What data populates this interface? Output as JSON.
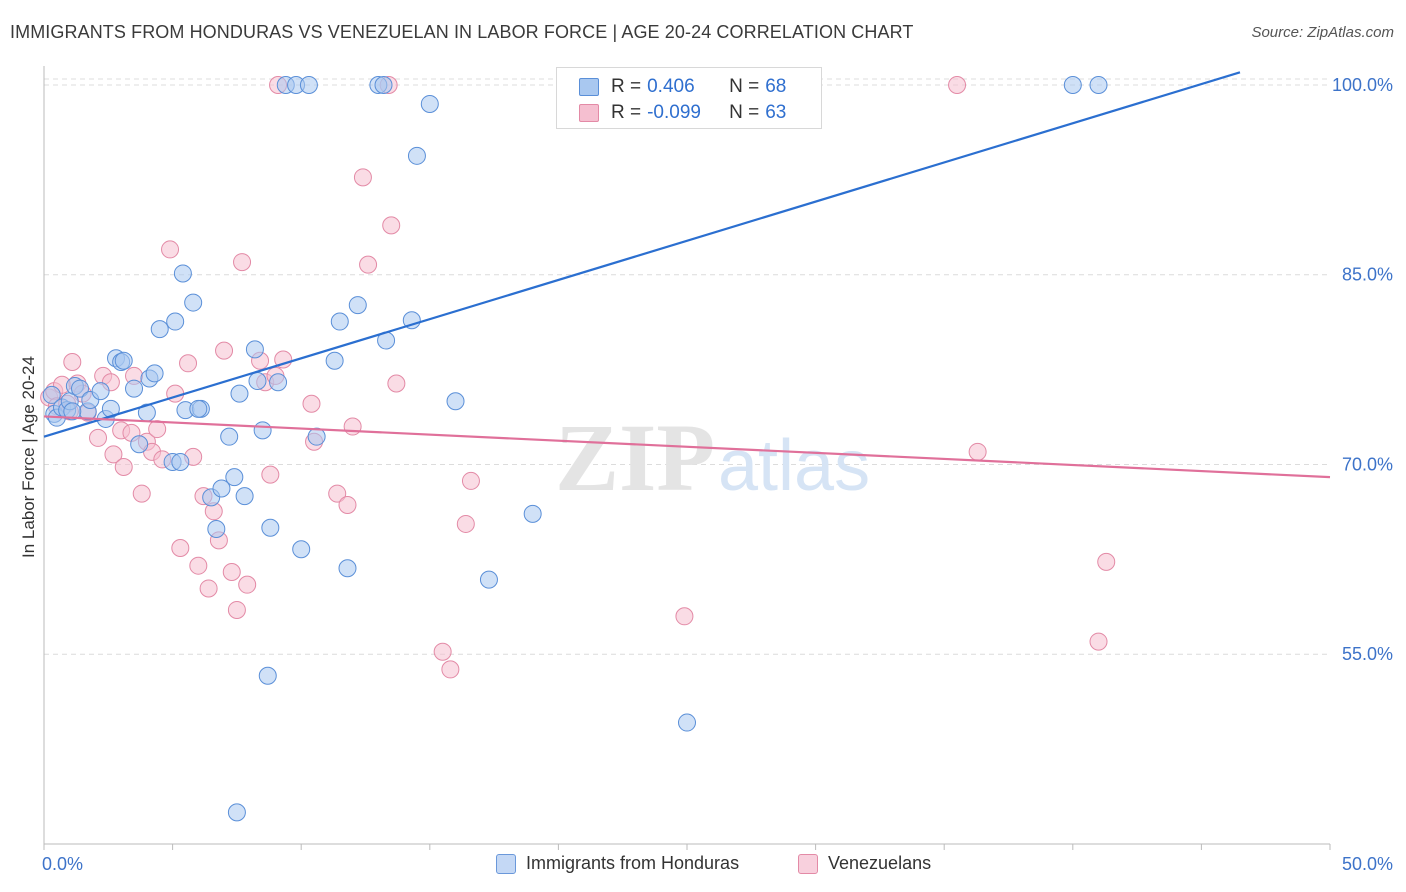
{
  "title": "IMMIGRANTS FROM HONDURAS VS VENEZUELAN IN LABOR FORCE | AGE 20-24 CORRELATION CHART",
  "source": "Source: ZipAtlas.com",
  "watermark": {
    "zip": "ZIP",
    "atlas": "atlas"
  },
  "colors": {
    "honduras_fill": "#a9c8f0",
    "honduras_stroke": "#5a8fd8",
    "honduras_line": "#2b6fd0",
    "venezuela_fill": "#f5bfd0",
    "venezuela_stroke": "#e38aa6",
    "venezuela_line": "#e0709a",
    "tick_label": "#3d73c9",
    "grid": "#dcdcdc"
  },
  "legend": {
    "r_label": "R =",
    "n_label": "N =",
    "rows": [
      {
        "r": "0.406",
        "n": "68"
      },
      {
        "r": "-0.099",
        "n": "63"
      }
    ]
  },
  "chart_data": {
    "type": "scatter",
    "title": "IMMIGRANTS FROM HONDURAS VS VENEZUELAN IN LABOR FORCE | AGE 20-24 CORRELATION CHART",
    "xlabel": "",
    "ylabel": "In Labor Force | Age 20-24",
    "xlim": [
      0,
      50
    ],
    "ylim": [
      40,
      101.5
    ],
    "x_tick_labels": [
      "0.0%",
      "50.0%"
    ],
    "x_ticks": [
      0,
      50
    ],
    "y_ticks": [
      55,
      70,
      85,
      100
    ],
    "y_tick_labels": [
      "55.0%",
      "70.0%",
      "85.0%",
      "100.0%"
    ],
    "grid": "horizontal dashed",
    "legend_position": "top-center",
    "series": [
      {
        "name": "Immigrants from Honduras",
        "r": 0.406,
        "n": 68,
        "trend": {
          "x": [
            0,
            46.5
          ],
          "y": [
            72.2,
            101
          ]
        },
        "points": [
          [
            0.3,
            75.5
          ],
          [
            0.4,
            74.0
          ],
          [
            0.5,
            73.7
          ],
          [
            0.7,
            74.5
          ],
          [
            0.9,
            74.3
          ],
          [
            1.0,
            75.0
          ],
          [
            1.2,
            76.2
          ],
          [
            1.4,
            76.0
          ],
          [
            1.7,
            74.2
          ],
          [
            1.8,
            75.1
          ],
          [
            2.2,
            75.8
          ],
          [
            2.4,
            73.6
          ],
          [
            2.6,
            74.4
          ],
          [
            2.8,
            78.4
          ],
          [
            3.0,
            78.1
          ],
          [
            3.1,
            78.2
          ],
          [
            3.5,
            76.0
          ],
          [
            3.7,
            71.6
          ],
          [
            4.0,
            74.1
          ],
          [
            4.1,
            76.8
          ],
          [
            4.3,
            77.2
          ],
          [
            4.5,
            80.7
          ],
          [
            5.0,
            70.2
          ],
          [
            5.1,
            81.3
          ],
          [
            5.4,
            85.1
          ],
          [
            5.5,
            74.3
          ],
          [
            5.8,
            82.8
          ],
          [
            6.1,
            74.4
          ],
          [
            6.5,
            67.4
          ],
          [
            6.7,
            64.9
          ],
          [
            6.9,
            68.1
          ],
          [
            7.2,
            72.2
          ],
          [
            7.4,
            69.0
          ],
          [
            7.6,
            75.6
          ],
          [
            7.8,
            67.5
          ],
          [
            8.2,
            79.1
          ],
          [
            8.3,
            76.6
          ],
          [
            8.5,
            72.7
          ],
          [
            8.7,
            53.3
          ],
          [
            8.8,
            65.0
          ],
          [
            9.1,
            76.5
          ],
          [
            9.4,
            100
          ],
          [
            9.8,
            100
          ],
          [
            10.0,
            63.3
          ],
          [
            10.3,
            100
          ],
          [
            10.6,
            72.2
          ],
          [
            11.3,
            78.2
          ],
          [
            11.5,
            81.3
          ],
          [
            11.8,
            61.8
          ],
          [
            12.2,
            82.6
          ],
          [
            13.0,
            100
          ],
          [
            13.2,
            100
          ],
          [
            13.3,
            79.8
          ],
          [
            14.3,
            81.4
          ],
          [
            14.5,
            94.4
          ],
          [
            15.0,
            98.5
          ],
          [
            16.0,
            75.0
          ],
          [
            17.3,
            60.9
          ],
          [
            19.0,
            66.1
          ],
          [
            21.6,
            100
          ],
          [
            25.0,
            49.6
          ],
          [
            28.0,
            100
          ],
          [
            40.0,
            100
          ],
          [
            41.0,
            100
          ],
          [
            7.5,
            42.5
          ],
          [
            5.3,
            70.2
          ],
          [
            1.1,
            74.2
          ],
          [
            6.0,
            74.4
          ]
        ]
      },
      {
        "name": "Venezuelans",
        "r": -0.099,
        "n": 63,
        "trend": {
          "x": [
            0,
            50
          ],
          "y": [
            73.8,
            69.0
          ]
        },
        "points": [
          [
            0.2,
            75.3
          ],
          [
            0.4,
            75.8
          ],
          [
            0.5,
            74.6
          ],
          [
            0.7,
            76.3
          ],
          [
            0.9,
            74.8
          ],
          [
            1.0,
            74.2
          ],
          [
            1.1,
            78.1
          ],
          [
            1.3,
            76.4
          ],
          [
            1.5,
            75.6
          ],
          [
            1.7,
            74.1
          ],
          [
            2.1,
            72.1
          ],
          [
            2.3,
            77.0
          ],
          [
            2.6,
            76.5
          ],
          [
            2.7,
            70.8
          ],
          [
            3.0,
            72.7
          ],
          [
            3.1,
            69.8
          ],
          [
            3.5,
            77.0
          ],
          [
            3.8,
            67.7
          ],
          [
            4.0,
            71.8
          ],
          [
            4.2,
            71.0
          ],
          [
            4.4,
            72.8
          ],
          [
            4.6,
            70.4
          ],
          [
            4.9,
            87.0
          ],
          [
            5.1,
            75.6
          ],
          [
            5.3,
            63.4
          ],
          [
            5.6,
            78.0
          ],
          [
            5.8,
            70.6
          ],
          [
            6.0,
            62.0
          ],
          [
            6.2,
            67.5
          ],
          [
            6.4,
            60.2
          ],
          [
            6.6,
            66.3
          ],
          [
            6.8,
            64.0
          ],
          [
            7.0,
            79.0
          ],
          [
            7.3,
            61.5
          ],
          [
            7.5,
            58.5
          ],
          [
            7.7,
            86.0
          ],
          [
            7.9,
            60.5
          ],
          [
            8.4,
            78.2
          ],
          [
            8.6,
            76.5
          ],
          [
            8.8,
            69.2
          ],
          [
            9.0,
            77.0
          ],
          [
            9.3,
            78.3
          ],
          [
            9.1,
            100
          ],
          [
            10.4,
            74.8
          ],
          [
            10.5,
            71.8
          ],
          [
            11.4,
            67.7
          ],
          [
            11.8,
            66.8
          ],
          [
            12.0,
            73.0
          ],
          [
            12.4,
            92.7
          ],
          [
            12.6,
            85.8
          ],
          [
            13.4,
            100
          ],
          [
            13.5,
            88.9
          ],
          [
            13.7,
            76.4
          ],
          [
            15.5,
            55.2
          ],
          [
            15.8,
            53.8
          ],
          [
            16.4,
            65.3
          ],
          [
            16.6,
            68.7
          ],
          [
            24.9,
            58.0
          ],
          [
            35.5,
            100
          ],
          [
            36.3,
            71.0
          ],
          [
            41.0,
            56.0
          ],
          [
            41.3,
            62.3
          ],
          [
            3.4,
            72.5
          ]
        ]
      }
    ]
  },
  "bottom_legend": [
    "Immigrants from Honduras",
    "Venezuelans"
  ]
}
